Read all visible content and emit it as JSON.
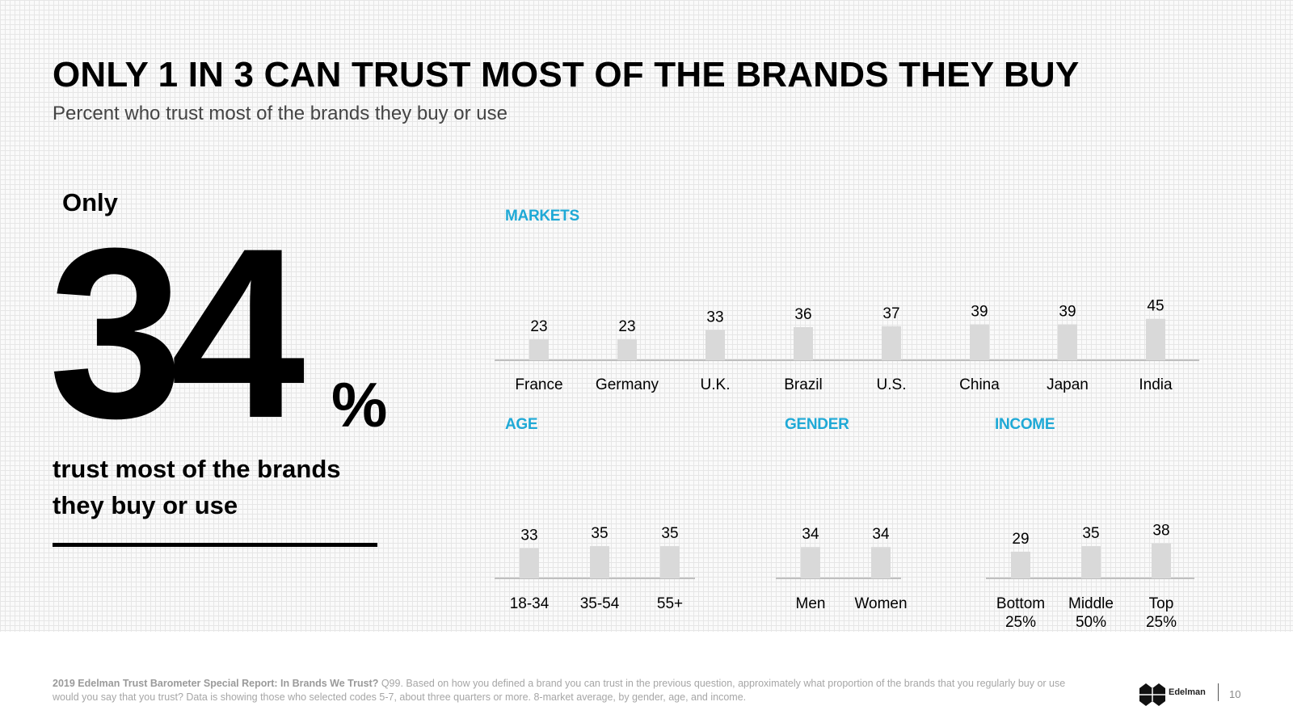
{
  "title": "ONLY 1 IN 3 CAN TRUST MOST OF THE BRANDS THEY BUY",
  "subtitle": "Percent who trust most of the brands they buy or use",
  "callout": {
    "prefix": "Only",
    "value": "34",
    "unit": "%",
    "text": "trust most of the brands they buy or use"
  },
  "sections": {
    "markets": "MARKETS",
    "age": "AGE",
    "gender": "GENDER",
    "income": "INCOME"
  },
  "chart_data": [
    {
      "type": "bar",
      "title": "MARKETS",
      "categories": [
        "France",
        "Germany",
        "U.K.",
        "Brazil",
        "U.S.",
        "China",
        "Japan",
        "India"
      ],
      "values": [
        23,
        23,
        33,
        36,
        37,
        39,
        39,
        45
      ],
      "bar_color": "#d9d9d9"
    },
    {
      "type": "bar",
      "title": "AGE",
      "categories": [
        "18-34",
        "35-54",
        "55+"
      ],
      "values": [
        33,
        35,
        35
      ],
      "bar_color": "#d9d9d9"
    },
    {
      "type": "bar",
      "title": "GENDER",
      "categories": [
        "Men",
        "Women"
      ],
      "values": [
        34,
        34
      ],
      "bar_color": "#d9d9d9"
    },
    {
      "type": "bar",
      "title": "INCOME",
      "categories": [
        [
          "Bottom",
          "25%"
        ],
        [
          "Middle",
          "50%"
        ],
        [
          "Top",
          "25%"
        ]
      ],
      "values": [
        29,
        35,
        38
      ],
      "bar_color": "#d9d9d9"
    }
  ],
  "footer": {
    "source": "2019 Edelman Trust Barometer Special Report: In Brands We Trust?",
    "note": " Q99. Based on how you defined a brand you can trust in the previous question, approximately what proportion of the brands that you regularly buy or use would you say that you trust? Data is showing those who selected codes 5-7, about three quarters or more. 8-market average, by gender, age, and income.",
    "logo": "Edelman",
    "page": "10"
  },
  "colors": {
    "accent": "#1fa9d6",
    "bar": "#d9d9d9",
    "baseline": "#bfbfbf"
  }
}
